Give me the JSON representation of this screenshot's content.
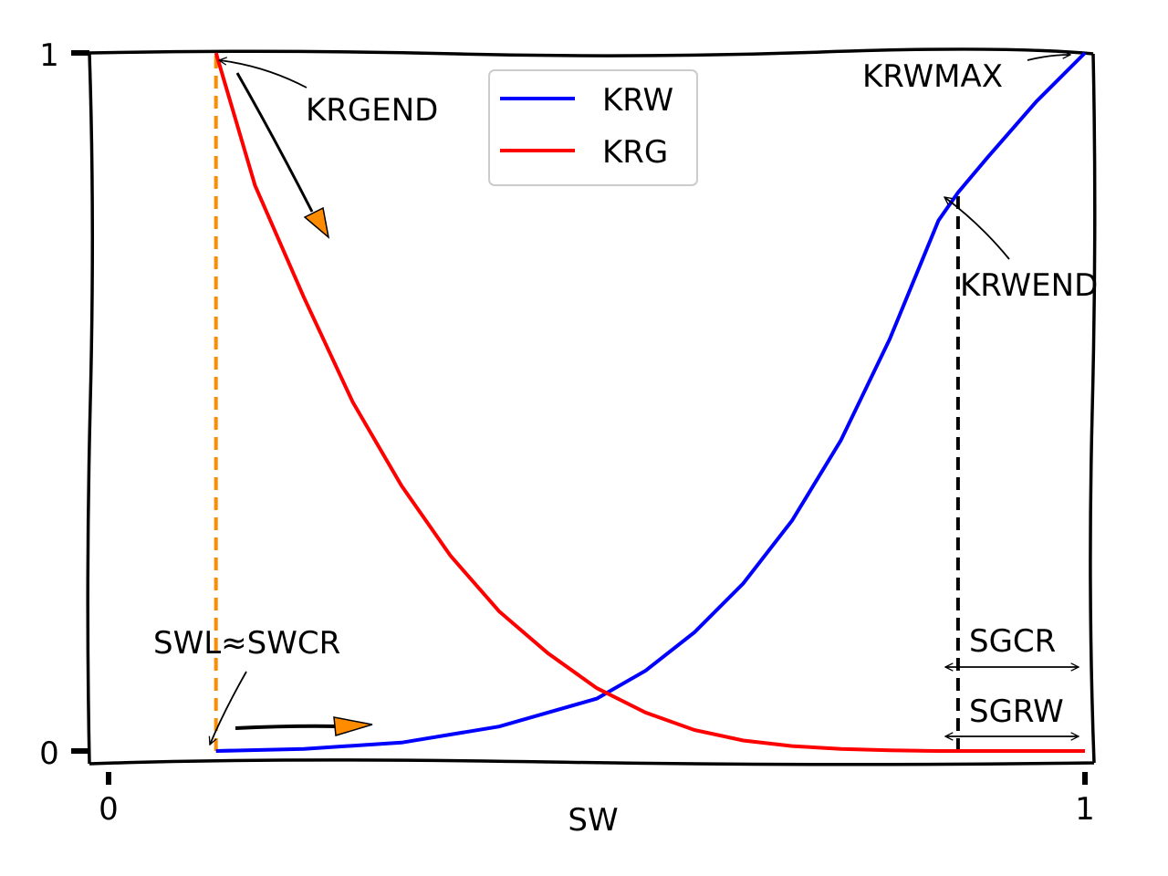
{
  "chart_data": {
    "type": "line",
    "title": "",
    "xlabel": "SW",
    "ylabel": "",
    "xlim": [
      0,
      1
    ],
    "ylim": [
      0,
      1
    ],
    "x_ticks": [
      "0",
      "1"
    ],
    "y_ticks": [
      "0",
      "1"
    ],
    "grid": false,
    "legend_position": "top-center",
    "series": [
      {
        "name": "KRW",
        "color": "#0000ff",
        "x": [
          0.11,
          0.2,
          0.3,
          0.4,
          0.5,
          0.55,
          0.6,
          0.65,
          0.7,
          0.75,
          0.8,
          0.85,
          0.87,
          0.9,
          0.95,
          1.0
        ],
        "y": [
          0.0,
          0.003,
          0.012,
          0.035,
          0.075,
          0.115,
          0.17,
          0.24,
          0.33,
          0.445,
          0.59,
          0.76,
          0.8,
          0.85,
          0.93,
          1.0
        ]
      },
      {
        "name": "KRG",
        "color": "#ff0000",
        "x": [
          0.11,
          0.15,
          0.2,
          0.25,
          0.3,
          0.35,
          0.4,
          0.45,
          0.5,
          0.55,
          0.6,
          0.65,
          0.7,
          0.75,
          0.8,
          0.85,
          0.9,
          0.95,
          1.0
        ],
        "y": [
          1.0,
          0.81,
          0.65,
          0.5,
          0.38,
          0.28,
          0.2,
          0.14,
          0.09,
          0.055,
          0.03,
          0.015,
          0.007,
          0.003,
          0.001,
          0.0,
          0.0,
          0.0,
          0.0
        ]
      }
    ],
    "reference_lines": [
      {
        "x": 0.11,
        "color": "#ff8c00",
        "style": "dashed"
      },
      {
        "x": 0.87,
        "color": "#000000",
        "style": "dashed"
      }
    ],
    "annotations": [
      {
        "label": "KRGEND"
      },
      {
        "label": "KRWMAX"
      },
      {
        "label": "KRWEND"
      },
      {
        "label": "SWL≈SWCR"
      },
      {
        "label": "SGCR"
      },
      {
        "label": "SGRW"
      }
    ]
  }
}
